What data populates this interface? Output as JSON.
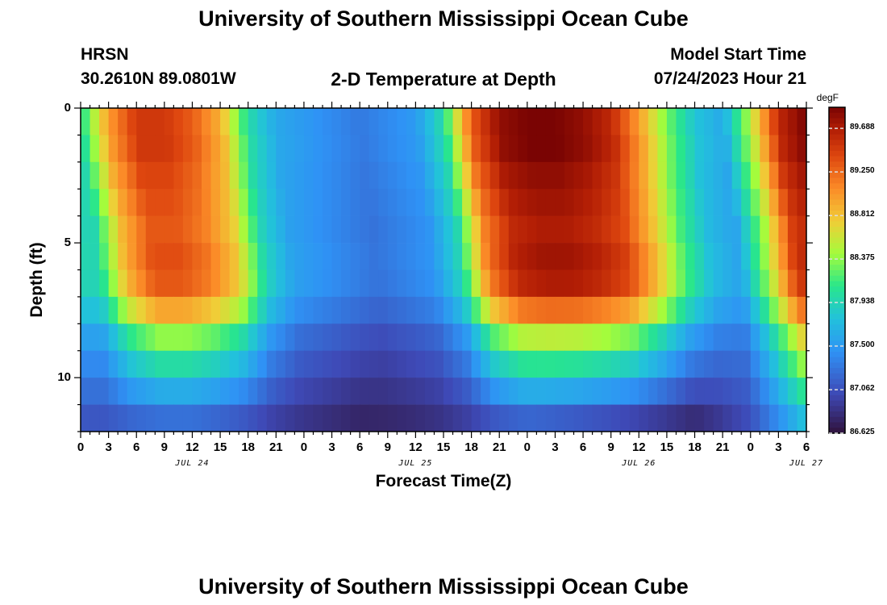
{
  "header": {
    "title_top": "University of Southern Mississippi Ocean Cube",
    "station": "HRSN",
    "coords": "30.2610N  89.0801W",
    "plot_title": "2-D Temperature at Depth",
    "model_label": "Model Start Time",
    "model_time": "07/24/2023 Hour 21",
    "title_bottom": "University of Southern Mississippi Ocean Cube"
  },
  "chart_data": {
    "type": "heatmap",
    "title": "2-D Temperature at Depth",
    "xlabel": "Forecast Time(Z)",
    "ylabel": "Depth (ft)",
    "x_ticks": [
      "0",
      "3",
      "6",
      "9",
      "12",
      "15",
      "18",
      "21",
      "0",
      "3",
      "6",
      "9",
      "12",
      "15",
      "18",
      "21",
      "0",
      "3",
      "6",
      "9",
      "12",
      "15",
      "18",
      "21",
      "0",
      "3",
      "6"
    ],
    "day_labels": [
      {
        "label": "JUL 24",
        "hour_offset": 12
      },
      {
        "label": "JUL 25",
        "hour_offset": 36
      },
      {
        "label": "JUL 26",
        "hour_offset": 60
      },
      {
        "label": "JUL 27",
        "hour_offset": 78
      }
    ],
    "y_ticks": [
      {
        "label": "0",
        "value": 0
      },
      {
        "label": "5",
        "value": 5
      },
      {
        "label": "10",
        "value": 10
      }
    ],
    "ylim": [
      0,
      12
    ],
    "hours_total": 78,
    "colorbar": {
      "unit": "degF",
      "labels": [
        "89.688",
        "89.250",
        "88.812",
        "88.375",
        "87.938",
        "87.500",
        "87.062",
        "86.625"
      ],
      "min": 86.625,
      "max": 89.9
    },
    "layers": [
      {
        "depth": 0.5,
        "amp": 1.0,
        "warm_shift": 0.0
      },
      {
        "depth": 1.5,
        "amp": 1.0,
        "warm_shift": 0.3
      },
      {
        "depth": 2.5,
        "amp": 0.97,
        "warm_shift": 0.6
      },
      {
        "depth": 3.5,
        "amp": 0.95,
        "warm_shift": 1.0
      },
      {
        "depth": 4.5,
        "amp": 0.93,
        "warm_shift": 1.4
      },
      {
        "depth": 5.5,
        "amp": 0.95,
        "warm_shift": 1.7
      },
      {
        "depth": 6.5,
        "amp": 0.93,
        "warm_shift": 2.0
      },
      {
        "depth": 7.5,
        "amp": 0.78,
        "warm_shift": 2.2
      },
      {
        "depth": 8.5,
        "amp": 0.55,
        "warm_shift": 2.4
      },
      {
        "depth": 9.5,
        "amp": 0.4,
        "warm_shift": 2.5
      },
      {
        "depth": 10.5,
        "amp": 0.25,
        "warm_shift": 2.6
      },
      {
        "depth": 11.5,
        "amp": 0.1,
        "warm_shift": 2.7
      }
    ],
    "surface_profile": [
      [
        0,
        88.0
      ],
      [
        3,
        89.0
      ],
      [
        6,
        89.5
      ],
      [
        9,
        89.5
      ],
      [
        12,
        89.3
      ],
      [
        15,
        88.9
      ],
      [
        18,
        88.0
      ],
      [
        21,
        87.6
      ],
      [
        24,
        87.5
      ],
      [
        27,
        87.4
      ],
      [
        30,
        87.3
      ],
      [
        33,
        87.4
      ],
      [
        36,
        87.5
      ],
      [
        39,
        88.0
      ],
      [
        42,
        89.3
      ],
      [
        45,
        89.8
      ],
      [
        48,
        89.9
      ],
      [
        51,
        89.9
      ],
      [
        54,
        89.8
      ],
      [
        57,
        89.6
      ],
      [
        60,
        89.0
      ],
      [
        63,
        88.3
      ],
      [
        66,
        87.8
      ],
      [
        69,
        87.6
      ],
      [
        72,
        88.5
      ],
      [
        75,
        89.6
      ],
      [
        78,
        89.9
      ]
    ],
    "bottom_profile": [
      [
        0,
        87.0
      ],
      [
        6,
        87.0
      ],
      [
        12,
        87.0
      ],
      [
        18,
        86.9
      ],
      [
        24,
        86.8
      ],
      [
        30,
        86.7
      ],
      [
        36,
        86.75
      ],
      [
        42,
        86.85
      ],
      [
        48,
        86.9
      ],
      [
        54,
        86.8
      ],
      [
        60,
        86.7
      ],
      [
        66,
        86.65
      ],
      [
        72,
        87.0
      ],
      [
        78,
        87.6
      ]
    ]
  }
}
